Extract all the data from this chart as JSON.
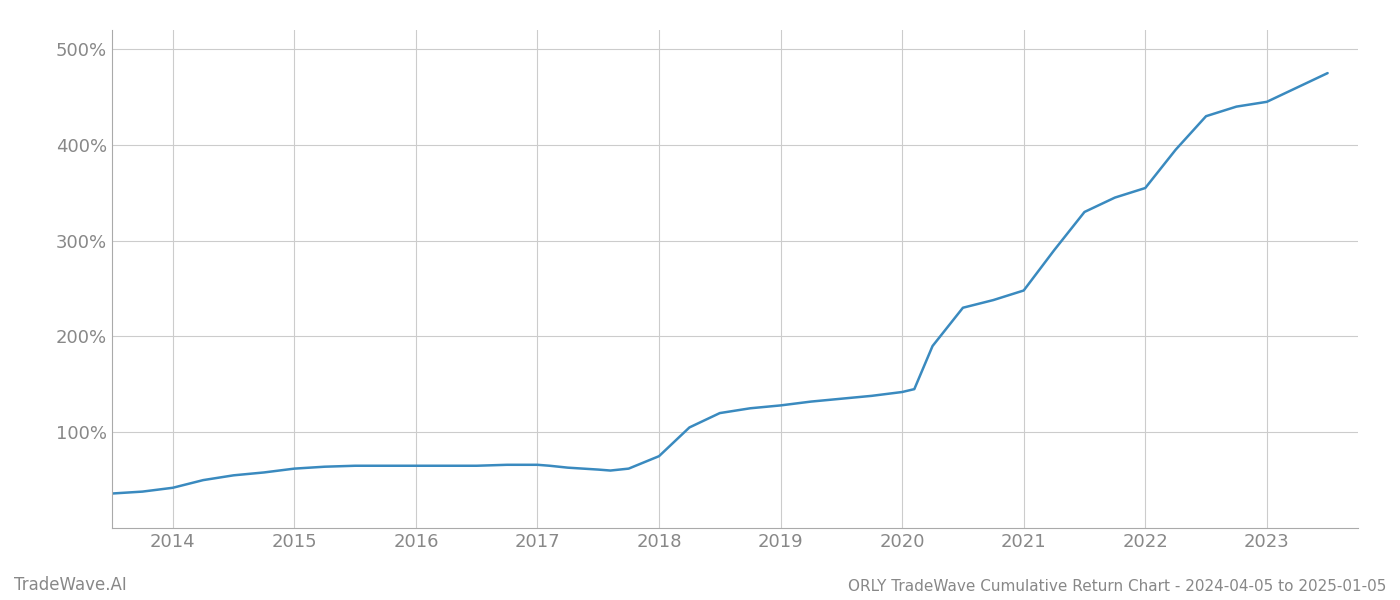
{
  "title": "ORLY TradeWave Cumulative Return Chart - 2024-04-05 to 2025-01-05",
  "watermark": "TradeWave.AI",
  "line_color": "#3a8abf",
  "background_color": "#ffffff",
  "grid_color": "#cccccc",
  "x_years": [
    2014,
    2015,
    2016,
    2017,
    2018,
    2019,
    2020,
    2021,
    2022,
    2023
  ],
  "x_data": [
    2013.25,
    2013.5,
    2013.75,
    2014.0,
    2014.25,
    2014.5,
    2014.75,
    2015.0,
    2015.25,
    2015.5,
    2015.75,
    2016.0,
    2016.25,
    2016.5,
    2016.75,
    2017.0,
    2017.1,
    2017.25,
    2017.5,
    2017.6,
    2017.75,
    2018.0,
    2018.25,
    2018.5,
    2018.75,
    2019.0,
    2019.25,
    2019.5,
    2019.75,
    2020.0,
    2020.1,
    2020.25,
    2020.5,
    2020.75,
    2021.0,
    2021.25,
    2021.5,
    2021.75,
    2022.0,
    2022.25,
    2022.5,
    2022.75,
    2023.0,
    2023.25,
    2023.5
  ],
  "y_data": [
    33,
    36,
    38,
    42,
    50,
    55,
    58,
    62,
    64,
    65,
    65,
    65,
    65,
    65,
    66,
    66,
    65,
    63,
    61,
    60,
    62,
    75,
    105,
    120,
    125,
    128,
    132,
    135,
    138,
    142,
    145,
    190,
    230,
    238,
    248,
    290,
    330,
    345,
    355,
    395,
    430,
    440,
    445,
    460,
    475
  ],
  "ylim": [
    0,
    520
  ],
  "yticks": [
    100,
    200,
    300,
    400,
    500
  ],
  "ytick_labels": [
    "100%",
    "200%",
    "300%",
    "400%",
    "500%"
  ],
  "xlim": [
    2013.5,
    2023.75
  ],
  "title_fontsize": 11,
  "watermark_fontsize": 12,
  "axis_label_color": "#888888",
  "spine_color": "#aaaaaa",
  "line_width": 1.8
}
